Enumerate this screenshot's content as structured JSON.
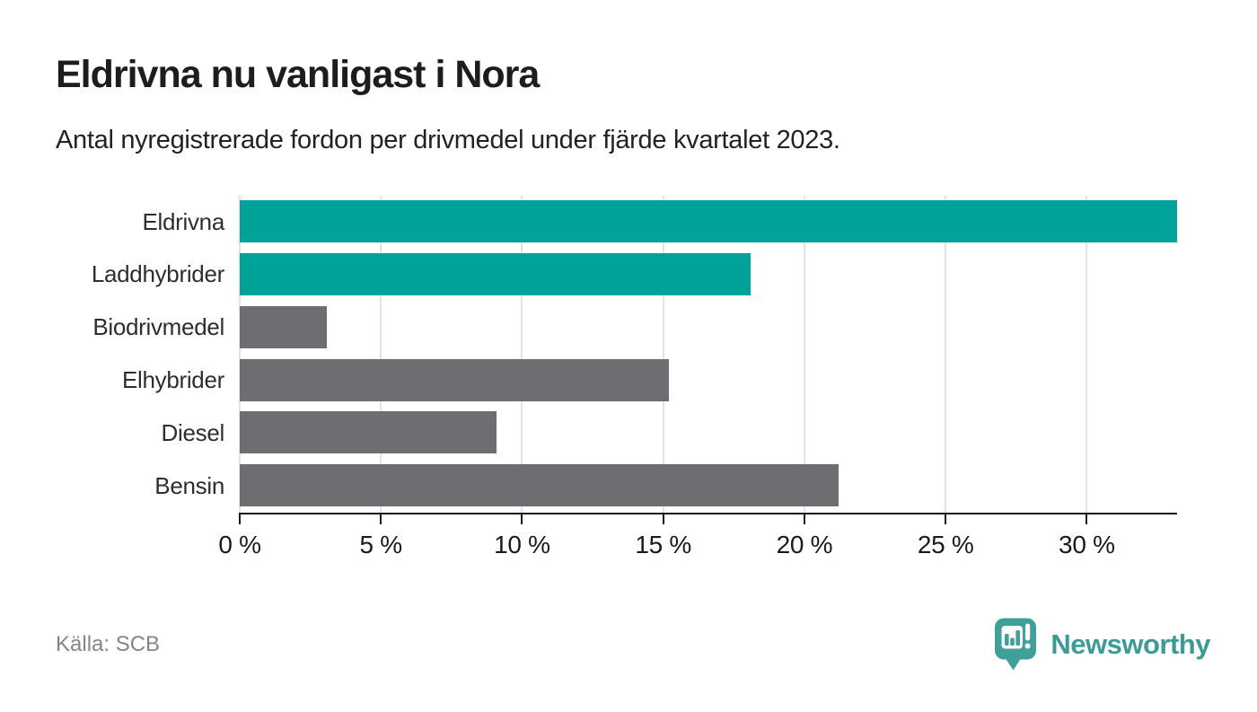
{
  "header": {
    "title": "Eldrivna nu vanligast i Nora",
    "subtitle": "Antal nyregistrerade fordon per drivmedel under fjärde kvartalet 2023."
  },
  "chart_data": {
    "type": "bar",
    "orientation": "horizontal",
    "title": "Eldrivna nu vanligast i Nora",
    "subtitle": "Antal nyregistrerade fordon per drivmedel under fjärde kvartalet 2023.",
    "categories": [
      "Eldrivna",
      "Laddhybrider",
      "Biodrivmedel",
      "Elhybrider",
      "Diesel",
      "Bensin"
    ],
    "values": [
      33.2,
      18.1,
      3.1,
      15.2,
      9.1,
      21.2
    ],
    "unit": "%",
    "bar_colors": [
      "#00a29a",
      "#00a29a",
      "#6d6d72",
      "#6d6d72",
      "#6d6d72",
      "#6d6d72"
    ],
    "xlim": [
      0,
      33.2
    ],
    "x_ticks": [
      0,
      5,
      10,
      15,
      20,
      25,
      30
    ],
    "x_tick_labels": [
      "0 %",
      "5 %",
      "10 %",
      "15 %",
      "20 %",
      "25 %",
      "30 %"
    ],
    "grid": true,
    "legend": false
  },
  "footer": {
    "source": "Källa: SCB",
    "brand_name": "Newsworthy"
  },
  "colors": {
    "accent_teal": "#00a29a",
    "bar_gray": "#6d6d72",
    "logo_teal": "#3f9f99",
    "gridline": "#e4e4e4",
    "axis": "#1a1a1a",
    "title_text": "#1d1d1d",
    "muted_text": "#84848c"
  }
}
